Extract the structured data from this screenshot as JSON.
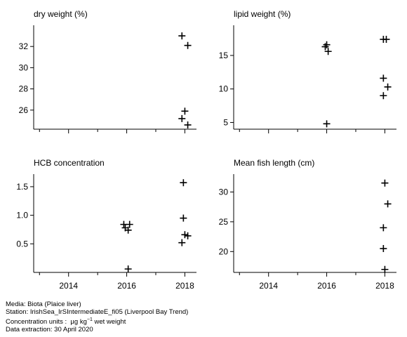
{
  "chart_data": [
    {
      "type": "scatter",
      "title": "dry weight (%)",
      "xlim": [
        2012.8,
        2018.4
      ],
      "ylim": [
        24.2,
        34.0
      ],
      "yticks": [
        26,
        28,
        30,
        32
      ],
      "ytick_labels": [
        "26",
        "28",
        "30",
        "32"
      ],
      "xticks": [
        2014,
        2016,
        2018
      ],
      "xtick_labels": [],
      "points": [
        {
          "x": 2017.9,
          "y": 33.0
        },
        {
          "x": 2018.1,
          "y": 32.1
        },
        {
          "x": 2018.0,
          "y": 25.9
        },
        {
          "x": 2017.9,
          "y": 25.2
        },
        {
          "x": 2018.1,
          "y": 24.6
        }
      ]
    },
    {
      "type": "scatter",
      "title": "lipid weight (%)",
      "xlim": [
        2012.8,
        2018.4
      ],
      "ylim": [
        4.0,
        19.5
      ],
      "yticks": [
        5,
        10,
        15
      ],
      "ytick_labels": [
        "5",
        "10",
        "15"
      ],
      "xticks": [
        2014,
        2016,
        2018
      ],
      "xtick_labels": [],
      "points": [
        {
          "x": 2016.0,
          "y": 16.6
        },
        {
          "x": 2015.95,
          "y": 16.3
        },
        {
          "x": 2016.05,
          "y": 15.6
        },
        {
          "x": 2016.0,
          "y": 4.8
        },
        {
          "x": 2017.95,
          "y": 17.4
        },
        {
          "x": 2018.05,
          "y": 17.4
        },
        {
          "x": 2017.95,
          "y": 11.6
        },
        {
          "x": 2018.1,
          "y": 10.3
        },
        {
          "x": 2017.95,
          "y": 9.0
        }
      ]
    },
    {
      "type": "scatter",
      "title": "HCB concentration",
      "xlim": [
        2012.8,
        2018.4
      ],
      "ylim": [
        0.0,
        1.72
      ],
      "yticks": [
        0.5,
        1.0,
        1.5
      ],
      "ytick_labels": [
        "0.5",
        "1.0",
        "1.5"
      ],
      "xticks": [
        2014,
        2016,
        2018
      ],
      "xtick_labels": [
        "2014",
        "2016",
        "2018"
      ],
      "points": [
        {
          "x": 2015.9,
          "y": 0.84
        },
        {
          "x": 2016.1,
          "y": 0.84
        },
        {
          "x": 2015.95,
          "y": 0.78
        },
        {
          "x": 2016.05,
          "y": 0.74
        },
        {
          "x": 2016.05,
          "y": 0.06
        },
        {
          "x": 2017.95,
          "y": 1.57
        },
        {
          "x": 2017.95,
          "y": 0.95
        },
        {
          "x": 2018.0,
          "y": 0.66
        },
        {
          "x": 2018.1,
          "y": 0.64
        },
        {
          "x": 2017.9,
          "y": 0.52
        }
      ]
    },
    {
      "type": "scatter",
      "title": "Mean fish length (cm)",
      "xlim": [
        2012.8,
        2018.4
      ],
      "ylim": [
        16.5,
        33.0
      ],
      "yticks": [
        20,
        25,
        30
      ],
      "ytick_labels": [
        "20",
        "25",
        "30"
      ],
      "xticks": [
        2014,
        2016,
        2018
      ],
      "xtick_labels": [
        "2014",
        "2016",
        "2018"
      ],
      "points": [
        {
          "x": 2018.0,
          "y": 31.5
        },
        {
          "x": 2018.1,
          "y": 28.0
        },
        {
          "x": 2017.95,
          "y": 24.0
        },
        {
          "x": 2017.95,
          "y": 20.5
        },
        {
          "x": 2018.0,
          "y": 17.0
        }
      ]
    }
  ],
  "footer": {
    "media": "Media: Biota (Plaice liver)",
    "station": "Station: IrishSea_IrSIntermediateE_fi05 (Liverpool Bay Trend)",
    "units_prefix": "Concentration units :",
    "units_base": "µg kg",
    "units_exp": "−1",
    "units_suffix": " wet weight",
    "extraction": "Data extraction: 30 April 2020"
  }
}
